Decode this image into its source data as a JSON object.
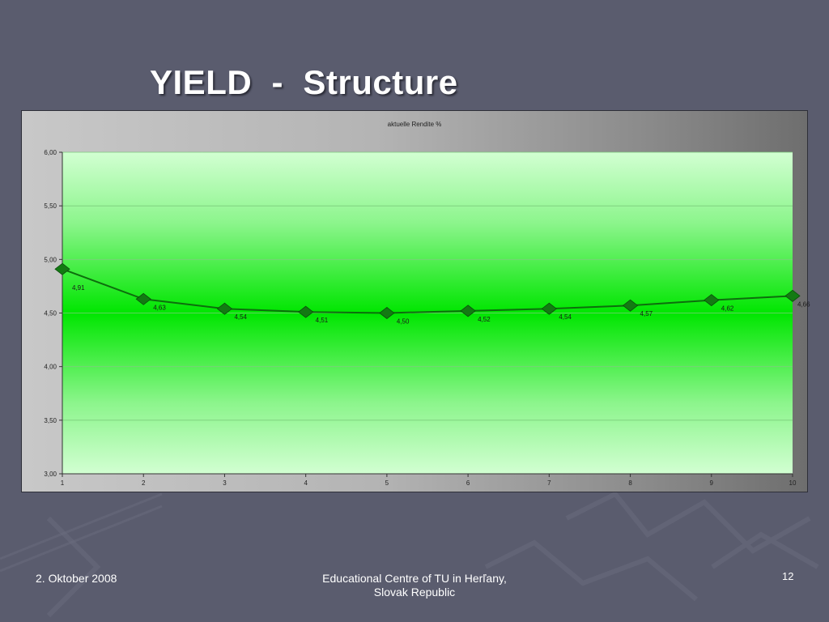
{
  "slide": {
    "title": "YIELD  -  Structure",
    "footer_date": "2. Oktober 2008",
    "footer_center_line1": "Educational Centre of TU in Herľany,",
    "footer_center_line2": "Slovak Republic",
    "page_number": "12"
  },
  "colors": {
    "background": "#5a5c6e",
    "plot_green": "#00e600",
    "line": "#0d6e0d",
    "marker": "#137a13"
  },
  "chart_data": {
    "type": "line",
    "title": "aktuelle Rendite %",
    "xlabel": "",
    "ylabel": "",
    "x": [
      1,
      2,
      3,
      4,
      5,
      6,
      7,
      8,
      9,
      10
    ],
    "x_tick_labels": [
      "1",
      "2",
      "3",
      "4",
      "5",
      "6",
      "7",
      "8",
      "9",
      "10"
    ],
    "ylim": [
      3.0,
      6.0
    ],
    "y_ticks": [
      3.0,
      3.5,
      4.0,
      4.5,
      5.0,
      5.5,
      6.0
    ],
    "y_tick_labels": [
      "3,00",
      "3,50",
      "4,00",
      "4,50",
      "5,00",
      "5,50",
      "6,00"
    ],
    "grid": true,
    "legend": "none",
    "series": [
      {
        "values": [
          4.91,
          4.63,
          4.54,
          4.51,
          4.5,
          4.52,
          4.54,
          4.57,
          4.62,
          4.66
        ],
        "data_labels": [
          "4,91",
          "4,63",
          "4,54",
          "4,51",
          "4,50",
          "4,52",
          "4,54",
          "4,57",
          "4,62",
          "4,66"
        ]
      }
    ]
  }
}
